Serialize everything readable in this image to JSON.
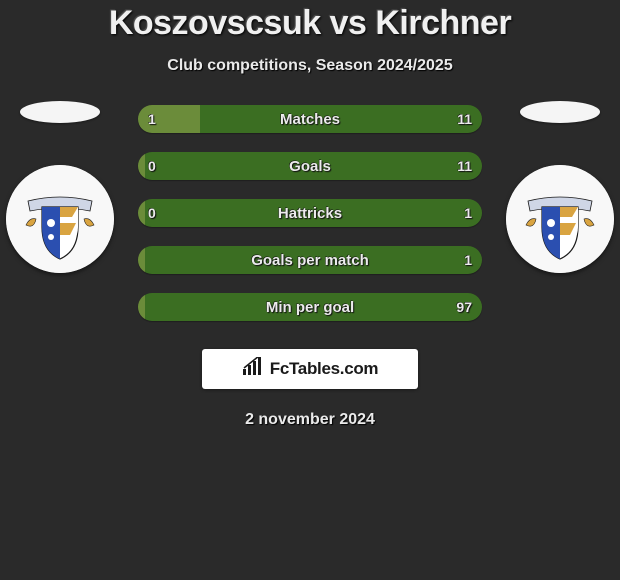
{
  "title": "Koszovscsuk vs Kirchner",
  "subtitle": "Club competitions, Season 2024/2025",
  "date": "2 november 2024",
  "branding": "FcTables.com",
  "colors": {
    "left": "#6b8c3a",
    "right": "#3b6e22",
    "background": "#2a2a2a",
    "text": "#ececec",
    "flag": "#f5f5f5"
  },
  "stats": [
    {
      "label": "Matches",
      "leftValue": "1",
      "rightValue": "11",
      "leftPct": 18,
      "rightPct": 82
    },
    {
      "label": "Goals",
      "leftValue": "0",
      "rightValue": "11",
      "leftPct": 2,
      "rightPct": 98
    },
    {
      "label": "Hattricks",
      "leftValue": "0",
      "rightValue": "1",
      "leftPct": 2,
      "rightPct": 98
    },
    {
      "label": "Goals per match",
      "leftValue": "",
      "rightValue": "1",
      "leftPct": 2,
      "rightPct": 98
    },
    {
      "label": "Min per goal",
      "leftValue": "",
      "rightValue": "97",
      "leftPct": 2,
      "rightPct": 98
    }
  ],
  "crest": {
    "shield_blue": "#2b4fb0",
    "shield_gold": "#d9a441",
    "ribbon": "#cfd6e6",
    "outline": "#1a1a1a",
    "bg": "#f8f8f8"
  }
}
